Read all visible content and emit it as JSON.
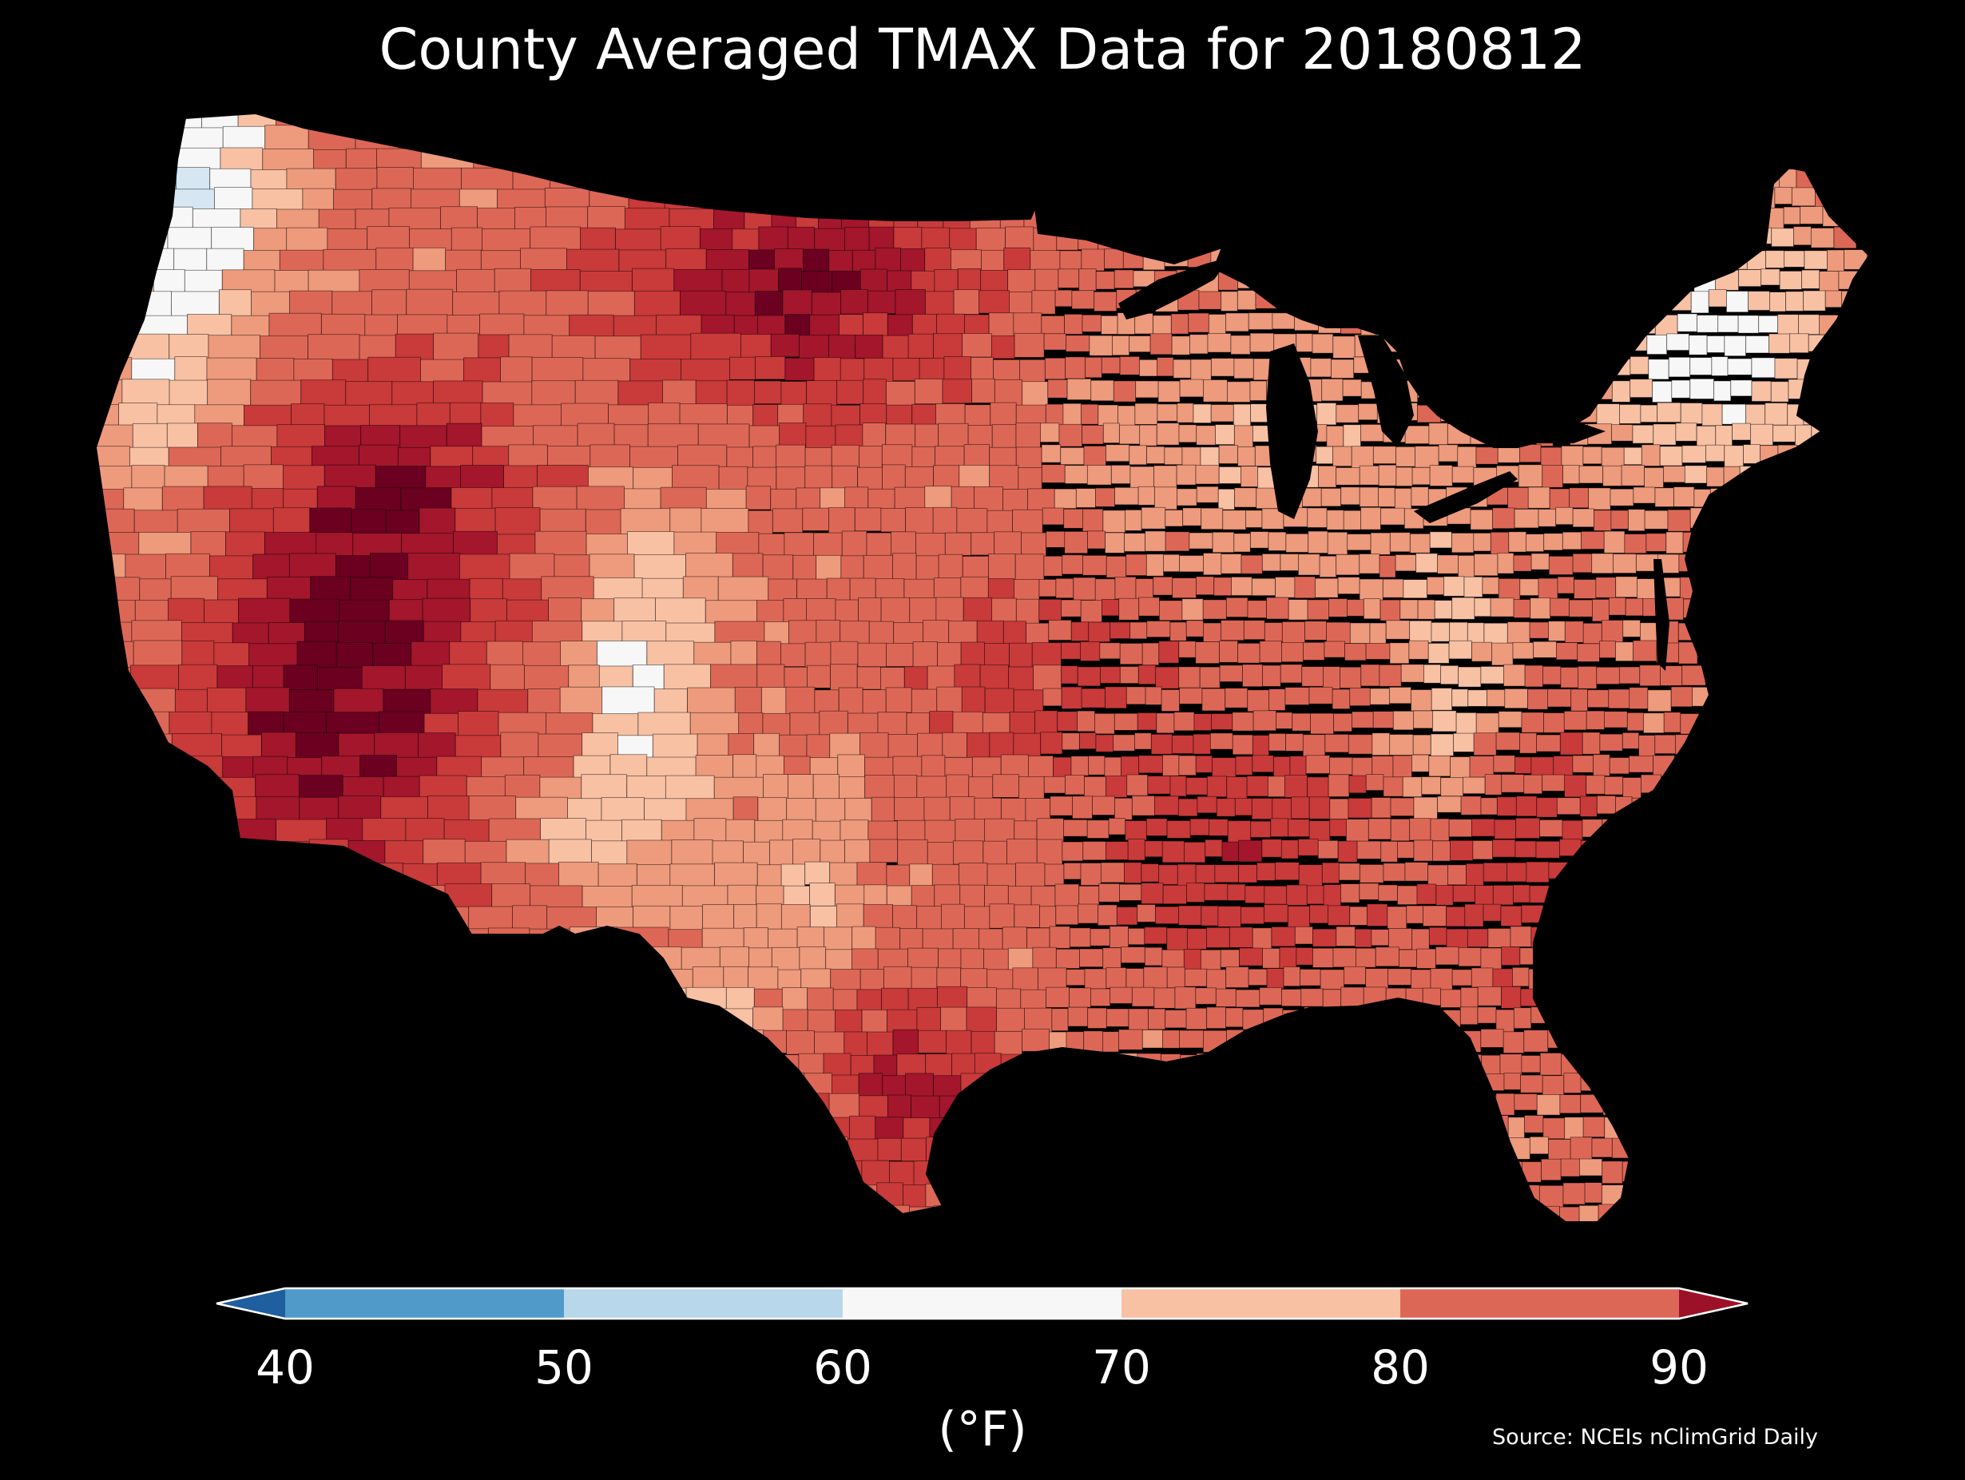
{
  "title": "County Averaged TMAX Data for 20180812",
  "source": "Source: NCEIs nClimGrid Daily",
  "colorbar": {
    "unit_label": "(°F)",
    "ticks": [
      "40",
      "50",
      "60",
      "70",
      "80",
      "90"
    ],
    "bins": [
      {
        "range": "<40",
        "color": "#1f5e9f"
      },
      {
        "range": "40-50",
        "color": "#4f9ac9"
      },
      {
        "range": "50-60",
        "color": "#b8d7ea"
      },
      {
        "range": "60-70",
        "color": "#f7f7f7"
      },
      {
        "range": "70-80",
        "color": "#f8c1a4"
      },
      {
        "range": "80-90",
        "color": "#dd6756"
      },
      {
        "range": ">90",
        "color": "#9c1127"
      }
    ],
    "extend": "both"
  },
  "map": {
    "region": "Contiguous United States",
    "background_color": "#000000",
    "county_outline_color": "#000000",
    "colors": {
      "hot": "#6b0020",
      "very_warm": "#a3162c",
      "warm": "#c93a3a",
      "mild_warm": "#dd6756",
      "mild": "#ee9a7c",
      "cool_mild": "#f8c1a4",
      "neutral": "#f7f7f7",
      "cool": "#d6e6f2"
    }
  }
}
